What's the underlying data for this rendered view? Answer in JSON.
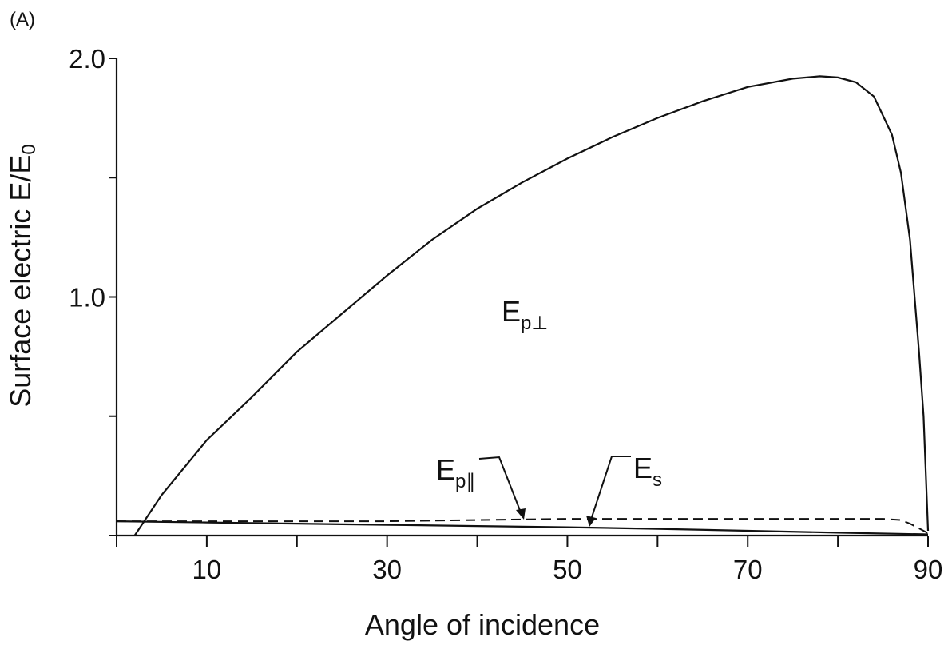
{
  "panel_label": "(A)",
  "chart_data": {
    "type": "line",
    "xlabel": "Angle of incidence",
    "ylabel": "Surface electric E/E",
    "ylabel_subscript": "0",
    "xlim": [
      0,
      90
    ],
    "ylim": [
      0,
      2.0
    ],
    "x_ticks": [
      0,
      10,
      20,
      30,
      40,
      50,
      60,
      70,
      80,
      90
    ],
    "x_tick_labels": [
      "10",
      "30",
      "50",
      "70",
      "90"
    ],
    "x_tick_label_values": [
      10,
      30,
      50,
      70,
      90
    ],
    "y_ticks": [
      0,
      0.5,
      1.0,
      1.5,
      2.0
    ],
    "y_tick_labels": [
      "1.0",
      "2.0"
    ],
    "y_tick_label_values": [
      1.0,
      2.0
    ],
    "grid": false,
    "series": [
      {
        "name": "E_p⊥",
        "label_main": "E",
        "label_sub": "p⊥",
        "style": "solid",
        "x": [
          2,
          5,
          10,
          15,
          20,
          25,
          30,
          35,
          40,
          45,
          50,
          55,
          60,
          65,
          70,
          75,
          78,
          80,
          82,
          84,
          86,
          87,
          88,
          89,
          89.5,
          90
        ],
        "y": [
          0,
          0.17,
          0.4,
          0.58,
          0.77,
          0.93,
          1.09,
          1.24,
          1.37,
          1.48,
          1.58,
          1.67,
          1.75,
          1.82,
          1.88,
          1.915,
          1.925,
          1.92,
          1.9,
          1.84,
          1.68,
          1.52,
          1.24,
          0.77,
          0.5,
          0.02
        ]
      },
      {
        "name": "E_p∥",
        "label_main": "E",
        "label_sub": "p∥",
        "style": "dashed",
        "x": [
          0,
          10,
          20,
          30,
          40,
          50,
          60,
          70,
          80,
          85,
          87,
          88,
          89,
          90
        ],
        "y": [
          0.06,
          0.06,
          0.06,
          0.06,
          0.065,
          0.07,
          0.07,
          0.07,
          0.07,
          0.07,
          0.065,
          0.05,
          0.03,
          0.01
        ]
      },
      {
        "name": "E_s",
        "label_main": "E",
        "label_sub": "s",
        "style": "solid",
        "x": [
          0,
          10,
          20,
          30,
          40,
          50,
          60,
          70,
          80,
          90
        ],
        "y": [
          0.06,
          0.055,
          0.05,
          0.045,
          0.04,
          0.035,
          0.028,
          0.02,
          0.012,
          0.005
        ]
      }
    ]
  }
}
